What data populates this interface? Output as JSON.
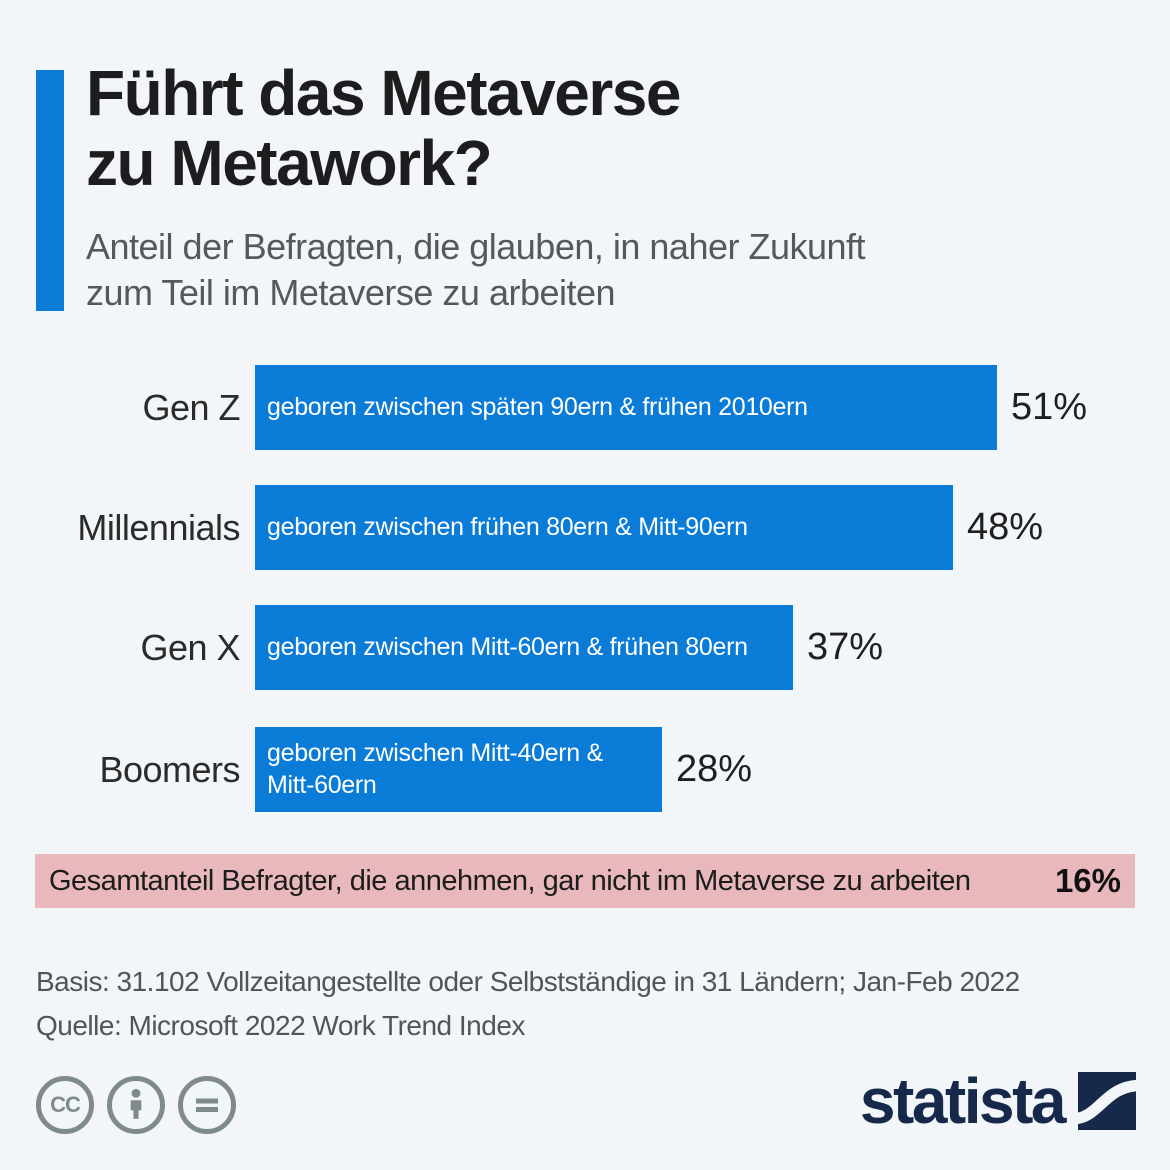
{
  "page": {
    "background": "#f2f6f9",
    "accent_color": "#0a7cd8"
  },
  "header": {
    "title_line1": "Führt das Metaverse",
    "title_line2": "zu Metawork?",
    "subtitle_line1": "Anteil der Befragten, die glauben, in naher Zukunft",
    "subtitle_line2": "zum Teil im Metaverse zu arbeiten"
  },
  "chart_data": {
    "type": "bar",
    "orientation": "horizontal",
    "title": "Führt das Metaverse zu Metawork?",
    "subtitle": "Anteil der Befragten, die glauben, in naher Zukunft zum Teil im Metaverse zu arbeiten",
    "categories": [
      "Gen Z",
      "Millennials",
      "Gen X",
      "Boomers"
    ],
    "values": [
      51,
      48,
      37,
      28
    ],
    "value_labels": [
      "51%",
      "48%",
      "37%",
      "28%"
    ],
    "bar_descriptions": [
      "geboren zwischen späten 90ern & frühen 2010ern",
      "geboren zwischen frühen 80ern & Mitt-90ern",
      "geboren zwischen Mitt-60ern & frühen 80ern",
      "geboren zwischen Mitt-40ern & Mitt-60ern"
    ],
    "bar_color": "#0a7cd8",
    "xlim": [
      0,
      51
    ],
    "grid": false,
    "legend": false,
    "annotation": {
      "text": "Gesamtanteil Befragter, die annehmen, gar nicht im Metaverse zu arbeiten",
      "value": "16%",
      "background": "#e8b8bd"
    }
  },
  "banner": {
    "text": "Gesamtanteil Befragter, die annehmen, gar nicht im Metaverse zu arbeiten",
    "value": "16%",
    "background": "#e8b8bd"
  },
  "footer": {
    "basis": "Basis: 31.102 Vollzeitangestellte oder Selbstständige in 31 Ländern; Jan-Feb 2022",
    "source": "Quelle: Microsoft 2022 Work Trend Index"
  },
  "branding": {
    "logo_text": "statista",
    "logo_color": "#16294b",
    "license_icons": [
      "cc-icon",
      "attribution-icon",
      "no-derivatives-icon"
    ],
    "cc_label": "CC"
  }
}
